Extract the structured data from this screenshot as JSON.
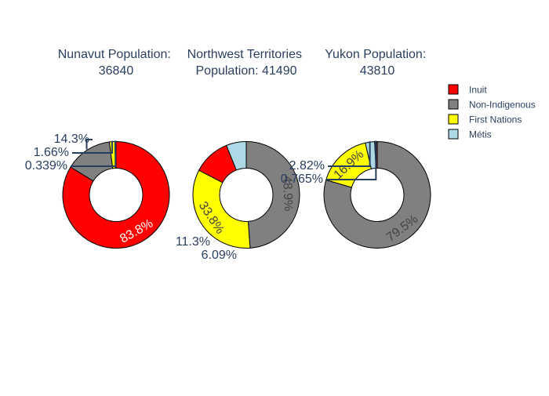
{
  "chart_data": [
    {
      "type": "pie",
      "hole": true,
      "title_lines": [
        "Nunavut Population:",
        "36840"
      ],
      "slices": [
        {
          "label": "Inuit",
          "percent": 83.8,
          "text": "83.8%",
          "color": "#ff0000"
        },
        {
          "label": "Non-Indigenous",
          "percent": 14.3,
          "text": "14.3%",
          "color": "#808080"
        },
        {
          "label": "First Nations",
          "percent": 1.66,
          "text": "1.66%",
          "color": "#ffff00"
        },
        {
          "label": "Métis",
          "percent": 0.339,
          "text": "0.339%",
          "color": "#add8e6"
        }
      ]
    },
    {
      "type": "pie",
      "hole": true,
      "title_lines": [
        "Northwest Territories",
        "Population: 41490"
      ],
      "slices": [
        {
          "label": "Inuit",
          "percent": 11.3,
          "text": "11.3%",
          "color": "#ff0000"
        },
        {
          "label": "Non-Indigenous",
          "percent": 48.9,
          "text": "48.9%",
          "color": "#808080"
        },
        {
          "label": "First Nations",
          "percent": 33.8,
          "text": "33.8%",
          "color": "#ffff00"
        },
        {
          "label": "Métis",
          "percent": 6.09,
          "text": "6.09%",
          "color": "#add8e6"
        }
      ]
    },
    {
      "type": "pie",
      "hole": true,
      "title_lines": [
        "Yukon Population:",
        "43810"
      ],
      "slices": [
        {
          "label": "Inuit",
          "percent": 0.765,
          "text": "0.765%",
          "color": "#ff0000"
        },
        {
          "label": "Non-Indigenous",
          "percent": 79.5,
          "text": "79.5%",
          "color": "#808080"
        },
        {
          "label": "First Nations",
          "percent": 16.9,
          "text": "16.9%",
          "color": "#ffff00"
        },
        {
          "label": "Métis",
          "percent": 2.82,
          "text": "2.82%",
          "color": "#add8e6"
        }
      ]
    }
  ],
  "legend": {
    "placement": "top-right",
    "items": [
      {
        "label": "Inuit",
        "color": "#ff0000"
      },
      {
        "label": "Non-Indigenous",
        "color": "#808080"
      },
      {
        "label": "First Nations",
        "color": "#ffff00"
      },
      {
        "label": "Métis",
        "color": "#add8e6"
      }
    ]
  }
}
